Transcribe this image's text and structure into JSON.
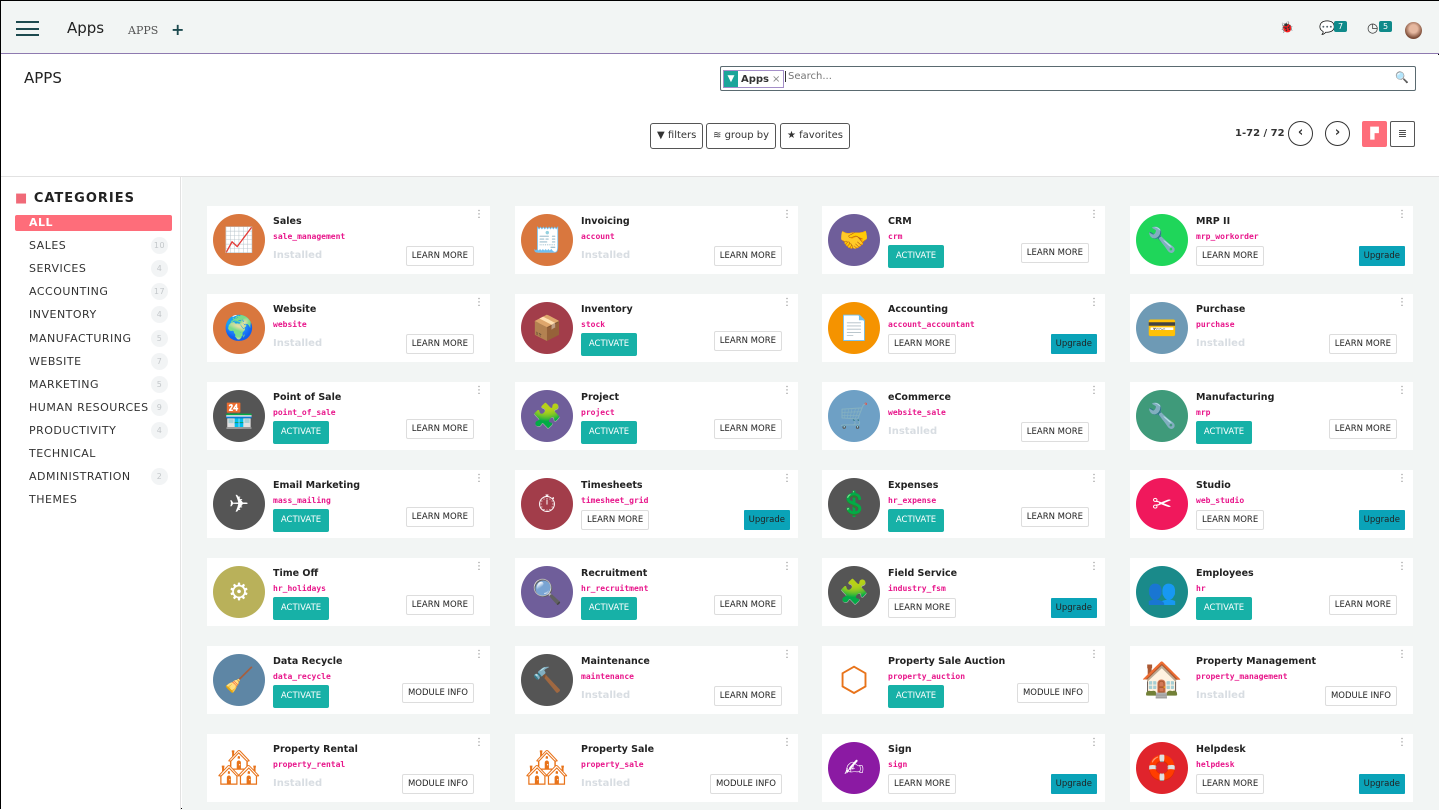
{
  "topbar": {
    "brand": "Apps",
    "breadcrumb": "APPS",
    "new_icon": "+",
    "messages_count": "7",
    "activities_count": "5"
  },
  "control": {
    "title": "APPS",
    "facet_label": "Apps",
    "search_placeholder": "Search...",
    "filters": "filters",
    "group_by": "group by",
    "favorites": "favorites",
    "pager": "1-72 / 72"
  },
  "sidebar": {
    "heading": "CATEGORIES",
    "items": [
      {
        "label": "ALL",
        "count": null,
        "active": true
      },
      {
        "label": "SALES",
        "count": "10"
      },
      {
        "label": "SERVICES",
        "count": "4"
      },
      {
        "label": "ACCOUNTING",
        "count": "17"
      },
      {
        "label": "INVENTORY",
        "count": "4"
      },
      {
        "label": "MANUFACTURING",
        "count": "5"
      },
      {
        "label": "WEBSITE",
        "count": "7"
      },
      {
        "label": "MARKETING",
        "count": "5"
      },
      {
        "label": "HUMAN RESOURCES",
        "count": "9"
      },
      {
        "label": "PRODUCTIVITY",
        "count": "4"
      },
      {
        "label": "TECHNICAL",
        "count": null
      },
      {
        "label": "ADMINISTRATION",
        "count": "2"
      },
      {
        "label": "THEMES",
        "count": null
      }
    ]
  },
  "labels": {
    "installed": "Installed",
    "activate": "ACTIVATE",
    "learn_more": "LEARN MORE",
    "module_info": "MODULE INFO",
    "upgrade": "Upgrade"
  },
  "apps": [
    {
      "name": "Sales",
      "tech": "sale_management",
      "state": "installed",
      "info": "learn_more",
      "color": "#d9773e",
      "icon": "📈"
    },
    {
      "name": "Invoicing",
      "tech": "account",
      "state": "installed",
      "info": "learn_more",
      "color": "#d9773e",
      "icon": "🧾"
    },
    {
      "name": "CRM",
      "tech": "crm",
      "state": "activate",
      "info": "learn_more",
      "color": "#6f5e9a",
      "icon": "🤝"
    },
    {
      "name": "MRP II",
      "tech": "mrp_workorder",
      "state": "upgrade",
      "info": "learn_more",
      "color": "#1fd65a",
      "icon": "🔧"
    },
    {
      "name": "Website",
      "tech": "website",
      "state": "installed",
      "info": "learn_more",
      "color": "#d9773e",
      "icon": "🌍"
    },
    {
      "name": "Inventory",
      "tech": "stock",
      "state": "activate",
      "info": "learn_more",
      "color": "#a23d4a",
      "icon": "📦"
    },
    {
      "name": "Accounting",
      "tech": "account_accountant",
      "state": "upgrade",
      "info": "learn_more",
      "color": "#f59300",
      "icon": "📄"
    },
    {
      "name": "Purchase",
      "tech": "purchase",
      "state": "installed",
      "info": "learn_more",
      "color": "#6e9ab5",
      "icon": "💳"
    },
    {
      "name": "Point of Sale",
      "tech": "point_of_sale",
      "state": "activate",
      "info": "learn_more",
      "color": "#555555",
      "icon": "🏪"
    },
    {
      "name": "Project",
      "tech": "project",
      "state": "activate",
      "info": "learn_more",
      "color": "#6f5e9a",
      "icon": "🧩"
    },
    {
      "name": "eCommerce",
      "tech": "website_sale",
      "state": "installed",
      "info": "learn_more",
      "color": "#6ea0c5",
      "icon": "🛒"
    },
    {
      "name": "Manufacturing",
      "tech": "mrp",
      "state": "activate",
      "info": "learn_more",
      "color": "#3f9a7a",
      "icon": "🔧"
    },
    {
      "name": "Email Marketing",
      "tech": "mass_mailing",
      "state": "activate",
      "info": "learn_more",
      "color": "#555555",
      "icon": "✈"
    },
    {
      "name": "Timesheets",
      "tech": "timesheet_grid",
      "state": "upgrade",
      "info": "learn_more",
      "color": "#a23d4a",
      "icon": "⏱"
    },
    {
      "name": "Expenses",
      "tech": "hr_expense",
      "state": "activate",
      "info": "learn_more",
      "color": "#555555",
      "icon": "💲"
    },
    {
      "name": "Studio",
      "tech": "web_studio",
      "state": "upgrade",
      "info": "learn_more",
      "color": "#f0185c",
      "icon": "✂"
    },
    {
      "name": "Time Off",
      "tech": "hr_holidays",
      "state": "activate",
      "info": "learn_more",
      "color": "#b9b15a",
      "icon": "⚙"
    },
    {
      "name": "Recruitment",
      "tech": "hr_recruitment",
      "state": "activate",
      "info": "learn_more",
      "color": "#6f5e9a",
      "icon": "🔍"
    },
    {
      "name": "Field Service",
      "tech": "industry_fsm",
      "state": "upgrade",
      "info": "learn_more",
      "color": "#555555",
      "icon": "🧩"
    },
    {
      "name": "Employees",
      "tech": "hr",
      "state": "activate",
      "info": "learn_more",
      "color": "#1a8a8a",
      "icon": "👥"
    },
    {
      "name": "Data Recycle",
      "tech": "data_recycle",
      "state": "activate",
      "info": "module_info",
      "color": "#5e86a5",
      "icon": "🧹"
    },
    {
      "name": "Maintenance",
      "tech": "maintenance",
      "state": "installed",
      "info": "learn_more",
      "color": "#555555",
      "icon": "🔨"
    },
    {
      "name": "Property Sale Auction",
      "tech": "property_auction",
      "state": "activate",
      "info": "module_info",
      "color": "#ffffff",
      "icon": "⬡"
    },
    {
      "name": "Property Management",
      "tech": "property_management",
      "state": "installed",
      "info": "module_info",
      "color": "#ffffff",
      "icon": "🏠"
    },
    {
      "name": "Property Rental",
      "tech": "property_rental",
      "state": "installed",
      "info": "module_info",
      "color": "#ffffff",
      "icon": "🏘"
    },
    {
      "name": "Property Sale",
      "tech": "property_sale",
      "state": "installed",
      "info": "module_info",
      "color": "#ffffff",
      "icon": "🏘"
    },
    {
      "name": "Sign",
      "tech": "sign",
      "state": "upgrade",
      "info": "learn_more",
      "color": "#8b1aa3",
      "icon": "✍"
    },
    {
      "name": "Helpdesk",
      "tech": "helpdesk",
      "state": "upgrade",
      "info": "learn_more",
      "color": "#e0242c",
      "icon": "🛟"
    }
  ]
}
